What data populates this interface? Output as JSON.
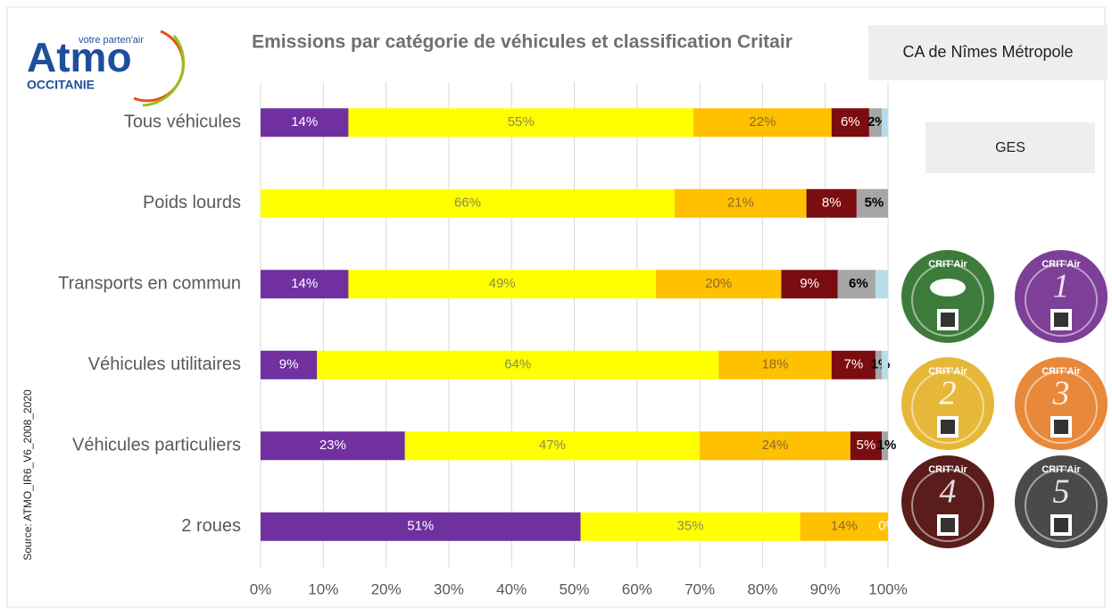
{
  "logo": {
    "name": "Atmo",
    "tagline": "votre parten'air",
    "region": "OCCITANIE"
  },
  "source": "Source: ATMO_IR6_V6_2008_2020",
  "boxes": [
    "CA de Nîmes Métropole",
    "GES"
  ],
  "stickers": [
    {
      "label": "CRIT'Air",
      "number": null,
      "color": "#3d7b3a"
    },
    {
      "label": "CRIT'Air",
      "number": "1",
      "color": "#7d3f98"
    },
    {
      "label": "CRIT'Air",
      "number": "2",
      "color": "#e6b83a"
    },
    {
      "label": "CRIT'Air",
      "number": "3",
      "color": "#e8883a"
    },
    {
      "label": "CRIT'Air",
      "number": "4",
      "color": "#5b1c1c"
    },
    {
      "label": "CRIT'Air",
      "number": "5",
      "color": "#4a4a4a"
    }
  ],
  "chart_data": {
    "type": "stacked-bar-horizontal",
    "title": "Emissions par catégorie de véhicules et classification Critair",
    "categories": [
      "Tous véhicules",
      "Poids lourds",
      "Transports en commun",
      "Véhicules utilitaires",
      "Véhicules particuliers",
      "2 roues"
    ],
    "series": [
      {
        "color": "#7030a0",
        "label_color": "#ffffff",
        "values": [
          14,
          0,
          14,
          9,
          23,
          51
        ],
        "value_labels": [
          "14%",
          null,
          "14%",
          "9%",
          "23%",
          "51%"
        ]
      },
      {
        "color": "#ffff00",
        "label_color": "#8a8a60",
        "values": [
          55,
          66,
          49,
          64,
          47,
          35
        ],
        "value_labels": [
          "55%",
          "66%",
          "49%",
          "64%",
          "47%",
          "35%"
        ]
      },
      {
        "color": "#ffc000",
        "label_color": "#8a6a30",
        "values": [
          22,
          21,
          20,
          18,
          24,
          14
        ],
        "value_labels": [
          "22%",
          "21%",
          "20%",
          "18%",
          "24%",
          "14%"
        ]
      },
      {
        "color": "#7b0c10",
        "label_color": "#ffffff",
        "values": [
          6,
          8,
          9,
          7,
          5,
          0
        ],
        "value_labels": [
          "6%",
          "8%",
          "9%",
          "7%",
          "5%",
          "0%"
        ]
      },
      {
        "color": "#a6a6a6",
        "label_color": "#000000",
        "values": [
          2,
          5,
          6,
          1,
          1,
          0
        ],
        "value_labels": [
          "2%",
          "5%",
          "6%",
          "1%",
          "1%",
          null
        ]
      },
      {
        "color": "#b7dee8",
        "label_color": "#000000",
        "values": [
          1,
          0,
          2,
          1,
          0,
          0
        ],
        "value_labels": [
          null,
          null,
          null,
          null,
          null,
          null
        ]
      }
    ],
    "xlim": [
      0,
      100
    ],
    "xticks": [
      {
        "value": 0,
        "label": "0%"
      },
      {
        "value": 10,
        "label": "10%"
      },
      {
        "value": 20,
        "label": "20%"
      },
      {
        "value": 30,
        "label": "30%"
      },
      {
        "value": 40,
        "label": "40%"
      },
      {
        "value": 50,
        "label": "50%"
      },
      {
        "value": 60,
        "label": "60%"
      },
      {
        "value": 70,
        "label": "70%"
      },
      {
        "value": 80,
        "label": "80%"
      },
      {
        "value": 90,
        "label": "90%"
      },
      {
        "value": 100,
        "label": "100%"
      }
    ],
    "grid": true
  }
}
